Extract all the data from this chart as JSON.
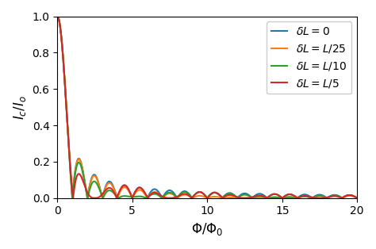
{
  "title": "",
  "xlabel": "$\\Phi/\\Phi_0$",
  "ylabel": "$I_c/I_o$",
  "xlim": [
    0,
    20
  ],
  "ylim": [
    0,
    1.0
  ],
  "xticks": [
    0,
    5,
    10,
    15,
    20
  ],
  "yticks": [
    0.0,
    0.2,
    0.4,
    0.6,
    0.8,
    1.0
  ],
  "curves": [
    {
      "dL_ratio": 0.0,
      "color": "#1f77b4",
      "label": "$\\delta L = 0$"
    },
    {
      "dL_ratio": 0.04,
      "color": "#ff7f0e",
      "label": "$\\delta L = L/25$"
    },
    {
      "dL_ratio": 0.1,
      "color": "#2ca02c",
      "label": "$\\delta L = L/10$"
    },
    {
      "dL_ratio": 0.2,
      "color": "#d62728",
      "label": "$\\delta L = L/5$"
    }
  ],
  "figsize": [
    4.74,
    3.14
  ],
  "dpi": 100
}
